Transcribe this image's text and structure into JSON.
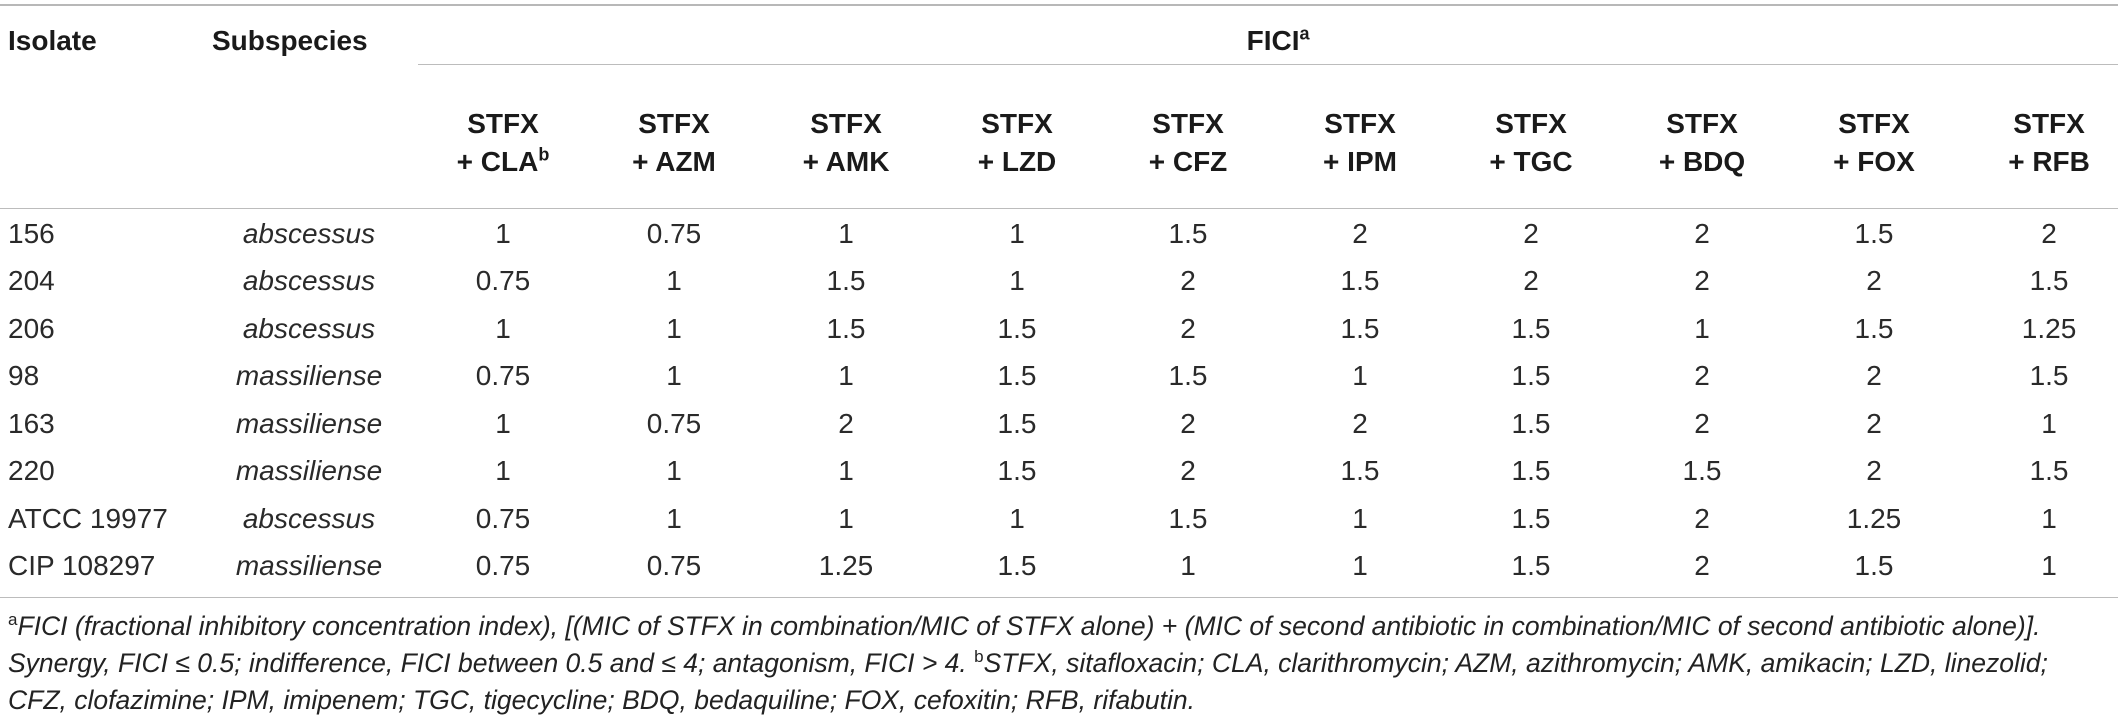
{
  "header": {
    "isolate": "Isolate",
    "subspecies": "Subspecies",
    "fici": "FICI",
    "fici_sup": "a"
  },
  "combos": [
    {
      "line1": "STFX",
      "line2": "+ CLA",
      "sup": "b"
    },
    {
      "line1": "STFX",
      "line2": "+ AZM",
      "sup": ""
    },
    {
      "line1": "STFX",
      "line2": "+ AMK",
      "sup": ""
    },
    {
      "line1": "STFX",
      "line2": "+ LZD",
      "sup": ""
    },
    {
      "line1": "STFX",
      "line2": "+ CFZ",
      "sup": ""
    },
    {
      "line1": "STFX",
      "line2": "+ IPM",
      "sup": ""
    },
    {
      "line1": "STFX",
      "line2": "+ TGC",
      "sup": ""
    },
    {
      "line1": "STFX",
      "line2": "+ BDQ",
      "sup": ""
    },
    {
      "line1": "STFX",
      "line2": "+ FOX",
      "sup": ""
    },
    {
      "line1": "STFX",
      "line2": "+ RFB",
      "sup": ""
    }
  ],
  "rows": [
    {
      "isolate": "156",
      "subspecies": "abscessus",
      "values": [
        "1",
        "0.75",
        "1",
        "1",
        "1.5",
        "2",
        "2",
        "2",
        "1.5",
        "2"
      ]
    },
    {
      "isolate": "204",
      "subspecies": "abscessus",
      "values": [
        "0.75",
        "1",
        "1.5",
        "1",
        "2",
        "1.5",
        "2",
        "2",
        "2",
        "1.5"
      ]
    },
    {
      "isolate": "206",
      "subspecies": "abscessus",
      "values": [
        "1",
        "1",
        "1.5",
        "1.5",
        "2",
        "1.5",
        "1.5",
        "1",
        "1.5",
        "1.25"
      ]
    },
    {
      "isolate": "98",
      "subspecies": "massiliense",
      "values": [
        "0.75",
        "1",
        "1",
        "1.5",
        "1.5",
        "1",
        "1.5",
        "2",
        "2",
        "1.5"
      ]
    },
    {
      "isolate": "163",
      "subspecies": "massiliense",
      "values": [
        "1",
        "0.75",
        "2",
        "1.5",
        "2",
        "2",
        "1.5",
        "2",
        "2",
        "1"
      ]
    },
    {
      "isolate": "220",
      "subspecies": "massiliense",
      "values": [
        "1",
        "1",
        "1",
        "1.5",
        "2",
        "1.5",
        "1.5",
        "1.5",
        "2",
        "1.5"
      ]
    },
    {
      "isolate": "ATCC 19977",
      "subspecies": "abscessus",
      "values": [
        "0.75",
        "1",
        "1",
        "1",
        "1.5",
        "1",
        "1.5",
        "2",
        "1.25",
        "1"
      ]
    },
    {
      "isolate": "CIP 108297",
      "subspecies": "massiliense",
      "values": [
        "0.75",
        "0.75",
        "1.25",
        "1.5",
        "1",
        "1",
        "1.5",
        "2",
        "1.5",
        "1"
      ]
    }
  ],
  "footnote": {
    "a_mark": "a",
    "a_text": "FICI (fractional inhibitory concentration index), [(MIC of STFX in combination/MIC of STFX alone) + (MIC of second antibiotic in combination/MIC of second antibiotic alone)]. Synergy, FICI ≤ 0.5; indifference, FICI between 0.5 and ≤ 4; antagonism, FICI > 4.",
    "b_mark": "b",
    "b_text": "STFX, sitafloxacin; CLA, clarithromycin; AZM, azithromycin; AMK, amikacin; LZD, linezolid; CFZ, clofazimine; IPM, imipenem; TGC, tigecycline; BDQ, bedaquiline; FOX, cefoxitin; RFB, rifabutin."
  }
}
